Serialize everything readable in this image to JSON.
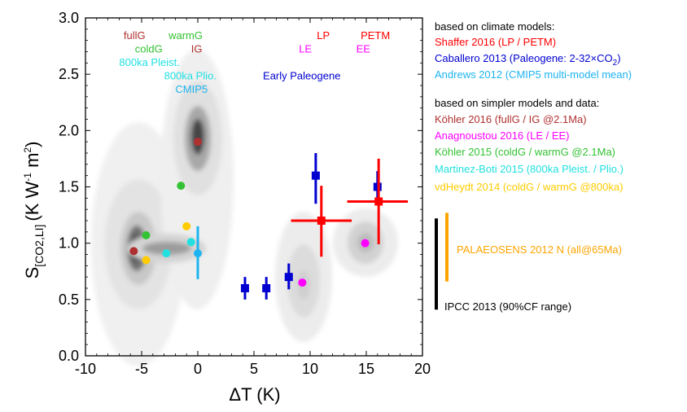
{
  "chart_data": {
    "type": "scatter",
    "xlabel": "ΔT (K)",
    "ylabel": {
      "main": "S",
      "sub": "[CO2,LI]",
      "units": "(K W",
      "exp1": "-1",
      "mid": " m",
      "exp2": "2",
      "end": ")"
    },
    "xlim": [
      -10,
      20
    ],
    "ylim": [
      0.0,
      3.0
    ],
    "xticks": [
      "-10",
      "-5",
      "0",
      "5",
      "10",
      "15",
      "20"
    ],
    "yticks": [
      "0.0",
      "0.5",
      "1.0",
      "1.5",
      "2.0",
      "2.5",
      "3.0"
    ],
    "colors": {
      "shaffer": "#ff0000",
      "caballero": "#0000d0",
      "andrews": "#1eb4f0",
      "kohler2016": "#b03030",
      "anagnoustou": "#ff00ff",
      "kohler2015": "#33c233",
      "martinez": "#22e0e0",
      "vdheydt": "#ffcc00",
      "palaeosens": "#ffa500",
      "ipcc": "#000000"
    },
    "series": [
      {
        "name": "Köhler 2016",
        "color": "#b03030",
        "points": [
          {
            "x": -5.7,
            "y": 0.93
          },
          {
            "x": 0.0,
            "y": 1.9
          }
        ]
      },
      {
        "name": "Anagnoustou 2016",
        "color": "#ff00ff",
        "points": [
          {
            "x": 9.3,
            "y": 0.65
          },
          {
            "x": 14.9,
            "y": 1.0
          }
        ]
      },
      {
        "name": "Köhler 2015",
        "color": "#33c233",
        "points": [
          {
            "x": -4.6,
            "y": 1.07
          },
          {
            "x": -1.5,
            "y": 1.51
          }
        ]
      },
      {
        "name": "Martinez-Boti 2015",
        "color": "#22e0e0",
        "points": [
          {
            "x": -2.8,
            "y": 0.91
          },
          {
            "x": -0.6,
            "y": 1.01
          }
        ]
      },
      {
        "name": "vdHeydt 2014",
        "color": "#ffcc00",
        "points": [
          {
            "x": -4.6,
            "y": 0.85
          },
          {
            "x": -1.0,
            "y": 1.15
          }
        ]
      },
      {
        "name": "Andrews 2012",
        "color": "#1eb4f0",
        "points": [
          {
            "x": 0.0,
            "y": 0.91,
            "ylo": 0.68,
            "yhi": 1.15
          }
        ]
      },
      {
        "name": "Caballero 2013",
        "color": "#0000d0",
        "points": [
          {
            "x": 4.2,
            "y": 0.6,
            "xlo": 3.9,
            "xhi": 4.5,
            "ylo": 0.5,
            "yhi": 0.7
          },
          {
            "x": 6.1,
            "y": 0.6,
            "xlo": 5.8,
            "xhi": 6.4,
            "ylo": 0.5,
            "yhi": 0.7
          },
          {
            "x": 8.1,
            "y": 0.7,
            "xlo": 7.8,
            "xhi": 8.4,
            "ylo": 0.59,
            "yhi": 0.82
          },
          {
            "x": 10.5,
            "y": 1.6,
            "xlo": 10.2,
            "xhi": 10.8,
            "ylo": 1.35,
            "yhi": 1.8
          },
          {
            "x": 16.0,
            "y": 1.5,
            "xlo": 15.7,
            "xhi": 16.3,
            "ylo": 1.36,
            "yhi": 1.64
          }
        ]
      },
      {
        "name": "Shaffer 2016",
        "color": "#ff0000",
        "points": [
          {
            "x": 11.0,
            "y": 1.2,
            "xlo": 8.3,
            "xhi": 13.7,
            "ylo": 0.88,
            "yhi": 1.51
          },
          {
            "x": 16.1,
            "y": 1.37,
            "xlo": 13.3,
            "xhi": 18.7,
            "ylo": 0.99,
            "yhi": 1.75
          }
        ]
      }
    ],
    "ranges": [
      {
        "name": "IPCC 2013",
        "color": "#000000",
        "x": 21.3,
        "ylo": 0.41,
        "yhi": 1.22
      },
      {
        "name": "PALAEOSENS 2012",
        "color": "#ffa500",
        "x": 22.3,
        "ylo": 0.66,
        "yhi": 1.27
      }
    ],
    "annotations": [
      {
        "text": "fullG",
        "color": "#b03030",
        "x": -6.6,
        "y": 2.85
      },
      {
        "text": "warmG",
        "color": "#33c233",
        "x": -2.6,
        "y": 2.85
      },
      {
        "text": "coldG",
        "color": "#33c233",
        "x": -5.6,
        "y": 2.73
      },
      {
        "text": "IG",
        "color": "#b03030",
        "x": -0.6,
        "y": 2.73
      },
      {
        "text": "800ka Pleist.",
        "color": "#22e0e0",
        "x": -7.0,
        "y": 2.61
      },
      {
        "text": "800ka Plio.",
        "color": "#22e0e0",
        "x": -3.0,
        "y": 2.49
      },
      {
        "text": "CMIP5",
        "color": "#1eb4f0",
        "x": -2.0,
        "y": 2.37
      },
      {
        "text": "LP",
        "color": "#ff0000",
        "x": 10.6,
        "y": 2.85
      },
      {
        "text": "PETM",
        "color": "#ff0000",
        "x": 14.5,
        "y": 2.85
      },
      {
        "text": "LE",
        "color": "#ff00ff",
        "x": 9.0,
        "y": 2.73
      },
      {
        "text": "EE",
        "color": "#ff00ff",
        "x": 14.1,
        "y": 2.73
      },
      {
        "text": "Early Paleogene",
        "color": "#0000d0",
        "x": 5.8,
        "y": 2.49
      }
    ]
  },
  "legend": {
    "climate_header": "based on climate models:",
    "climate_items": [
      {
        "text": "Shaffer 2016 (LP / PETM)",
        "color": "#ff0000"
      },
      {
        "pre": "Caballero 2013 (Paleogene: 2-32×CO",
        "sub": "2",
        "post": ")",
        "color": "#0000d0"
      },
      {
        "text": "Andrews 2012 (CMIP5 multi-model mean)",
        "color": "#1eb4f0"
      }
    ],
    "simple_header": "based on simpler models and data:",
    "simple_items": [
      {
        "text": "Köhler 2016 (fullG / IG @2.1Ma)",
        "color": "#b03030"
      },
      {
        "text": "Anagnoustou 2016 (LE / EE)",
        "color": "#ff00ff"
      },
      {
        "text": "Köhler 2015 (coldG / warmG @2.1Ma)",
        "color": "#33c233"
      },
      {
        "text": "Martinez-Boti 2015 (800ka Pleist. / Plio.)",
        "color": "#22e0e0"
      },
      {
        "text": "vdHeydt 2014 (coldG / warmG @800ka)",
        "color": "#ffcc00"
      }
    ],
    "palaeosens_label": "PALAEOSENS 2012 N (all@65Ma)",
    "ipcc_label": "IPCC 2013 (90%CF range)"
  }
}
